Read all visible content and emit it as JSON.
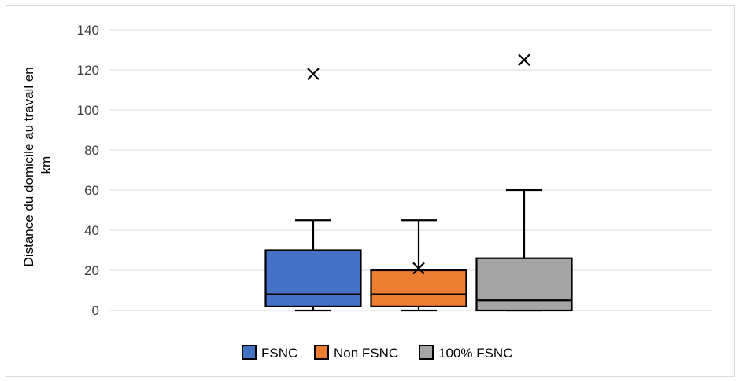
{
  "chart_data": {
    "type": "boxplot",
    "title": "",
    "xlabel": "",
    "ylabel_lines": [
      "Distance du domicile au travail en",
      "km"
    ],
    "ylim": [
      0,
      140
    ],
    "yticks": [
      0,
      20,
      40,
      60,
      80,
      100,
      120,
      140
    ],
    "grid": true,
    "legend_position": "bottom",
    "series": [
      {
        "name": "FSNC",
        "color": "#4472c4",
        "min": 0,
        "q1": 2,
        "median": 8,
        "q3": 30,
        "max": 45,
        "mean": null,
        "outliers": [
          118
        ]
      },
      {
        "name": "Non FSNC",
        "color": "#ed7d31",
        "min": 0,
        "q1": 2,
        "median": 8,
        "q3": 20,
        "max": 45,
        "mean": 21,
        "outliers": []
      },
      {
        "name": "100% FSNC",
        "color": "#a5a5a5",
        "min": 0,
        "q1": 0,
        "median": 5,
        "q3": 26,
        "max": 60,
        "mean": null,
        "outliers": [
          125
        ]
      }
    ]
  }
}
